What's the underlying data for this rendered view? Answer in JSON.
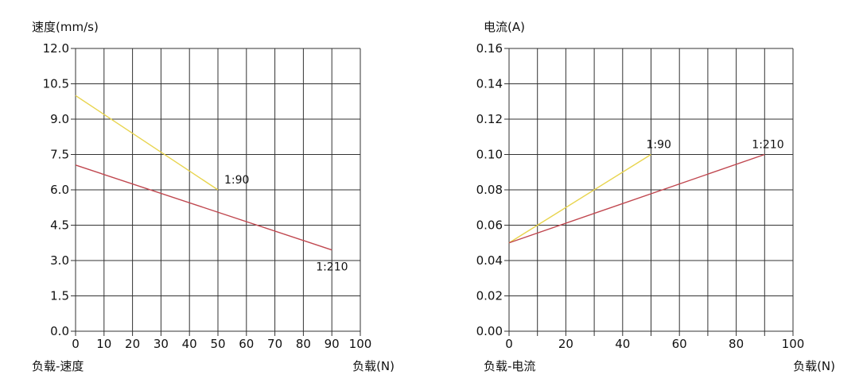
{
  "chart_data": [
    {
      "type": "line",
      "title": "负载-速度",
      "ylabel": "速度(mm/s)",
      "xlabel": "负载(N)",
      "xlim": [
        0,
        100
      ],
      "ylim": [
        0,
        12
      ],
      "xticks": [
        0,
        10,
        20,
        30,
        40,
        50,
        60,
        70,
        80,
        90,
        100
      ],
      "yticks": [
        0,
        1.5,
        3,
        4.5,
        6,
        7.5,
        9,
        10.5,
        12
      ],
      "xtick_labels": [
        "0",
        "10",
        "20",
        "30",
        "40",
        "50",
        "60",
        "70",
        "80",
        "90",
        "100"
      ],
      "ytick_labels": [
        "0.0",
        "1.5",
        "3.0",
        "4.5",
        "6.0",
        "7.5",
        "9.0",
        "10.5",
        "12.0"
      ],
      "grid": true,
      "series": [
        {
          "name": "1:90",
          "color": "#e8d44d",
          "x": [
            0,
            50
          ],
          "y": [
            10.0,
            6.0
          ]
        },
        {
          "name": "1:210",
          "color": "#c0474f",
          "x": [
            0,
            90
          ],
          "y": [
            7.05,
            3.45
          ]
        }
      ]
    },
    {
      "type": "line",
      "title": "负载-电流",
      "ylabel": "电流(A)",
      "xlabel": "负载(N)",
      "xlim": [
        0,
        100
      ],
      "ylim": [
        0,
        0.16
      ],
      "xticks": [
        0,
        20,
        40,
        60,
        80,
        100
      ],
      "yticks": [
        0,
        0.02,
        0.04,
        0.06,
        0.08,
        0.1,
        0.12,
        0.14,
        0.16
      ],
      "xtick_labels": [
        "0",
        "20",
        "40",
        "60",
        "80",
        "100"
      ],
      "ytick_labels": [
        "0.00",
        "0.02",
        "0.04",
        "0.06",
        "0.08",
        "0.10",
        "0.12",
        "0.14",
        "0.16"
      ],
      "grid": true,
      "series": [
        {
          "name": "1:90",
          "color": "#e8d44d",
          "x": [
            0,
            50
          ],
          "y": [
            0.05,
            0.1
          ]
        },
        {
          "name": "1:210",
          "color": "#c0474f",
          "x": [
            0,
            90
          ],
          "y": [
            0.05,
            0.1
          ]
        }
      ]
    }
  ]
}
